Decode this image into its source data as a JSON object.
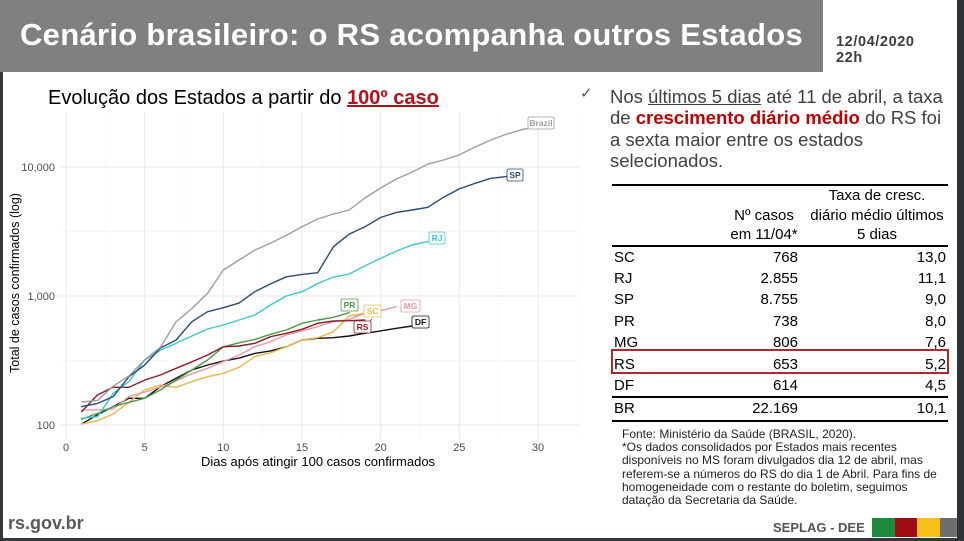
{
  "header": {
    "title": "Cenário brasileiro: o RS acompanha outros Estados",
    "date": "12/04/2020",
    "time": "22h"
  },
  "chart": {
    "title_prefix": "Evolução dos Estados a partir do ",
    "title_highlight": "100º caso",
    "highlight_color": "#b3121b"
  },
  "chart_data": {
    "type": "line",
    "title": "Evolução dos Estados a partir do 100º caso",
    "xlabel": "Dias após atingir 100 casos confirmados",
    "ylabel": "Total de casos confirmados (log)",
    "y_scale": "log",
    "xlim": [
      0,
      32.5
    ],
    "ylim": [
      80,
      25000
    ],
    "x_ticks": [
      "0",
      "5",
      "10",
      "15",
      "20",
      "25",
      "30"
    ],
    "y_ticks": [
      "100",
      "1,000",
      "10,000"
    ],
    "grid": true,
    "legend": "direct labels at line ends",
    "x_start": 1,
    "series": [
      {
        "name": "Brazil",
        "color": "#9e9e9e",
        "values": [
          151,
          155,
          200,
          240,
          320,
          400,
          630,
          800,
          1050,
          1590,
          1900,
          2270,
          2570,
          2950,
          3440,
          3950,
          4320,
          4640,
          5750,
          6880,
          8070,
          9130,
          10540,
          11330,
          12400,
          14300,
          16200,
          18000,
          19500,
          20700
        ]
      },
      {
        "name": "SP",
        "color": "#2b4a74",
        "values": [
          139,
          147,
          166,
          237,
          292,
          395,
          456,
          632,
          755,
          811,
          881,
          1080,
          1240,
          1410,
          1470,
          1515,
          2410,
          3020,
          3440,
          4070,
          4450,
          4640,
          4870,
          5830,
          6760,
          7470,
          8170,
          8420
        ]
      },
      {
        "name": "RJ",
        "color": "#3ec6cf",
        "values": [
          113,
          116,
          176,
          217,
          319,
          381,
          430,
          490,
          555,
          596,
          651,
          712,
          851,
          1000,
          1080,
          1250,
          1400,
          1480,
          1710,
          1960,
          2230,
          2490,
          2640
        ]
      },
      {
        "name": "PR",
        "color": "#4c9a45",
        "values": [
          111,
          123,
          139,
          150,
          161,
          187,
          223,
          267,
          319,
          404,
          434,
          461,
          505,
          545,
          614,
          651,
          684,
          742
        ]
      },
      {
        "name": "SC",
        "color": "#e9b84d",
        "values": [
          102,
          108,
          122,
          150,
          187,
          204,
          196,
          217,
          237,
          251,
          280,
          339,
          363,
          404,
          456,
          475,
          528,
          700,
          734
        ]
      },
      {
        "name": "MG",
        "color": "#e89aa0",
        "values": [
          131,
          131,
          133,
          166,
          180,
          197,
          220,
          250,
          275,
          310,
          349,
          404,
          442,
          499,
          536,
          578,
          632,
          660,
          734,
          769,
          826
        ]
      },
      {
        "name": "RS",
        "color": "#8c1c2c",
        "values": [
          127,
          171,
          196,
          196,
          223,
          244,
          275,
          309,
          349,
          404,
          410,
          430,
          484,
          514,
          552,
          614,
          640,
          643,
          651
        ]
      },
      {
        "name": "DF",
        "color": "#111111",
        "values": [
          102,
          120,
          139,
          161,
          161,
          198,
          230,
          267,
          292,
          313,
          330,
          359,
          375,
          404,
          456,
          470,
          475,
          490,
          514,
          536,
          562,
          585
        ]
      }
    ]
  },
  "summary": {
    "icon": "check-icon",
    "line1": {
      "a": "Nos ",
      "u": "últimos 5 dias",
      "b": " até 11 de abril, a taxa"
    },
    "line2": {
      "a": "de ",
      "hl": "crescimento diário médio",
      "b": " do RS foi"
    },
    "line3": "a sexta maior entre os estados",
    "line4": "selecionados.",
    "highlight_color": "#c00000"
  },
  "table": {
    "headers": {
      "state": "",
      "cases": {
        "line1": "Nº casos",
        "line2": "em 11/04*"
      },
      "rate": {
        "line1": "Taxa de cresc.",
        "line2": "diário médio últimos",
        "line3": "5 dias"
      }
    },
    "rows": [
      {
        "state": "SC",
        "cases": "768",
        "rate": "13,0"
      },
      {
        "state": "RJ",
        "cases": "2.855",
        "rate": "11,1"
      },
      {
        "state": "SP",
        "cases": "8.755",
        "rate": "9,0"
      },
      {
        "state": "PR",
        "cases": "738",
        "rate": "8,0"
      },
      {
        "state": "MG",
        "cases": "806",
        "rate": "7,6"
      },
      {
        "state": "RS",
        "cases": "653",
        "rate": "5,2"
      },
      {
        "state": "DF",
        "cases": "614",
        "rate": "4,5"
      }
    ],
    "total": {
      "state": "BR",
      "cases": "22.169",
      "rate": "10,1"
    },
    "highlighted_row": "RS",
    "highlight_color": "#b0282d"
  },
  "footnote": {
    "lines": [
      "Fonte: Ministério da Saúde (BRASIL, 2020).",
      "*Os dados consolidados por Estados mais recentes",
      "disponíveis no MS foram divulgados dia 12 de abril, mas",
      "referem-se a números do RS do dia 1 de Abril. Para fins de",
      "homogeneidade com o restante do boletim, seguimos",
      "datação da Secretaria da Saúde."
    ]
  },
  "footer": {
    "site": "rs.gov.br",
    "org": "SEPLAG - DEE",
    "flag_colors": [
      "#1d8b3e",
      "#a00e12",
      "#f6c01b",
      "#6e6e6e"
    ]
  }
}
